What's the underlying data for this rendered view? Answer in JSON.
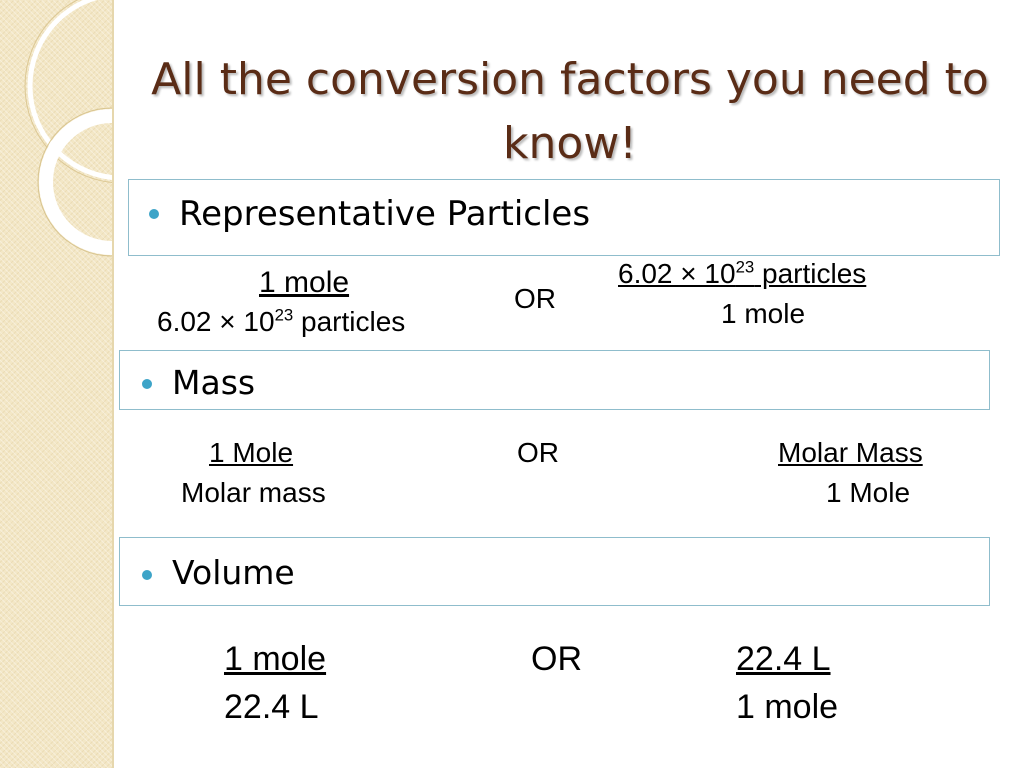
{
  "title": "All the conversion factors you need to know!",
  "sections": {
    "particles": {
      "heading": "Representative Particles",
      "left_num": "1 mole",
      "left_den_base": "6.02 × 10",
      "left_den_exp": "23",
      "left_den_unit": " particles",
      "or": "OR",
      "right_num_base": "6.02 × 10",
      "right_num_exp": "23",
      "right_num_unit": " particles",
      "right_den": "1 mole"
    },
    "mass": {
      "heading": "Mass",
      "left_num": "1 Mole",
      "left_den": "Molar mass",
      "or": "OR",
      "right_num": "Molar Mass",
      "right_den": "1 Mole"
    },
    "volume": {
      "heading": "Volume",
      "left_num": "1 mole",
      "left_den": "22.4 L",
      "or": "OR",
      "right_num": "22.4 L",
      "right_den": "1 mole"
    }
  },
  "colors": {
    "title": "#5a2c16",
    "bullet": "#3da4c8",
    "box_border": "#8fbdcc",
    "side_strip": "#f3e7c6"
  }
}
